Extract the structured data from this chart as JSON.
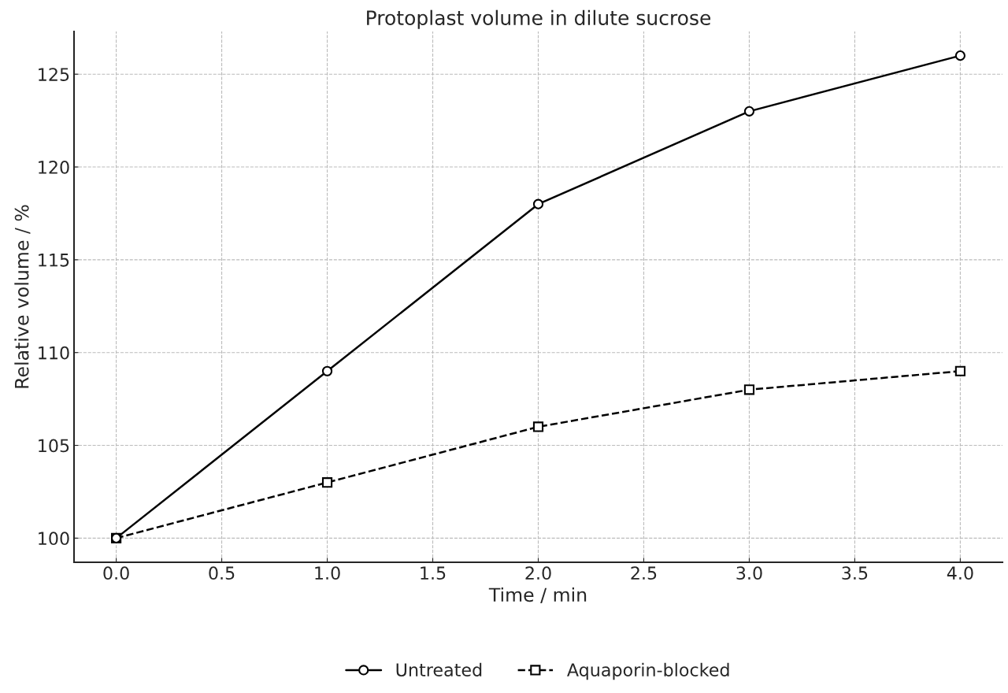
{
  "chart_data": {
    "type": "line",
    "title": "Protoplast volume in dilute sucrose",
    "xlabel": "Time / min",
    "ylabel": "Relative volume / %",
    "x": [
      0,
      1,
      2,
      3,
      4
    ],
    "series": [
      {
        "name": "Untreated",
        "color": "#000000",
        "values": [
          100,
          109,
          118,
          123,
          126
        ],
        "marker": "circle",
        "line_style": "solid"
      },
      {
        "name": "Aquaporin-blocked",
        "color": "#000000",
        "values": [
          100,
          103,
          106,
          108,
          109
        ],
        "marker": "square",
        "line_style": "dashed"
      }
    ],
    "xlim": [
      -0.2,
      4.2
    ],
    "xticks": [
      {
        "value": 0,
        "label": "0.0"
      },
      0.5,
      {
        "value": 1,
        "label": "1.0"
      },
      1.5,
      {
        "value": 2,
        "label": "2.0"
      },
      2.5,
      {
        "value": 3,
        "label": "3.0"
      },
      3.5,
      {
        "value": 4,
        "label": "4.0"
      }
    ],
    "ylim": [
      98.7,
      127.3
    ],
    "yticks": [
      100,
      105,
      110,
      115,
      120,
      125
    ],
    "grid": true,
    "legend": "bottom"
  }
}
